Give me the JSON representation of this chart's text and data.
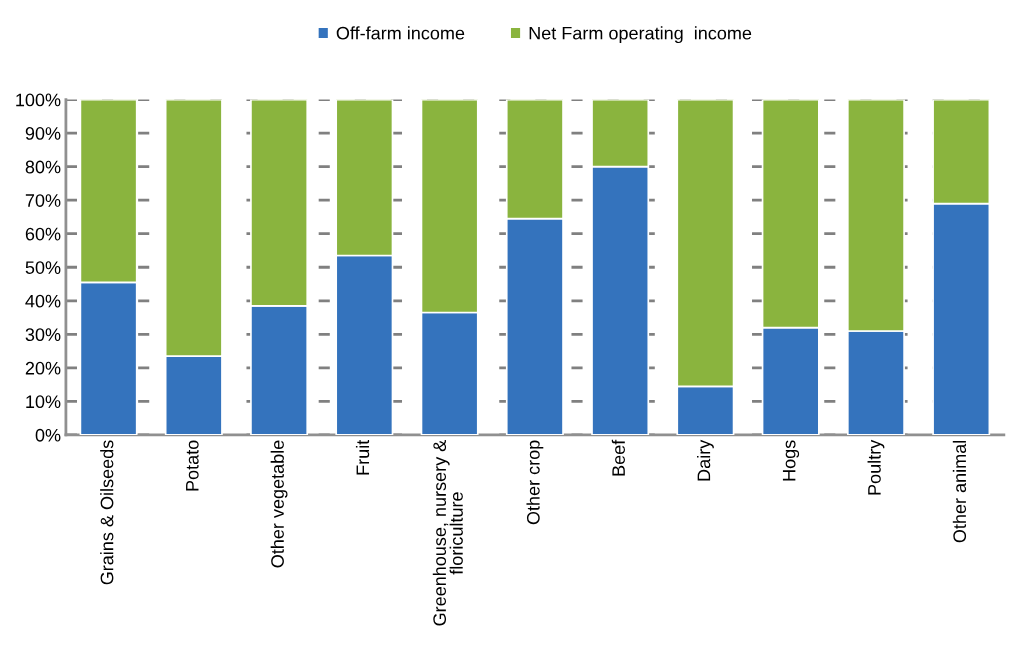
{
  "chart_data": {
    "type": "bar",
    "stacked": true,
    "categories": [
      "Grains & Oilseeds",
      "Potato",
      "Other vegetable",
      "Fruit",
      "Greenhouse, nursery &\nfloriculture",
      "Other crop",
      "Beef",
      "Dairy",
      "Hogs",
      "Poultry",
      "Other animal"
    ],
    "series": [
      {
        "name": "Off-farm income",
        "color": "#3473bd",
        "values": [
          45.5,
          23.5,
          38.5,
          53.5,
          36.5,
          64.5,
          80,
          14.5,
          32,
          31,
          69
        ]
      },
      {
        "name": "Net Farm operating  income",
        "color": "#8ab43e",
        "values": [
          54.5,
          76.5,
          61.5,
          46.5,
          63.5,
          35.5,
          20,
          85.5,
          68,
          69,
          31
        ]
      }
    ],
    "ylim": [
      0,
      100
    ],
    "yticks": [
      {
        "value": 0,
        "label": "0%"
      },
      {
        "value": 10,
        "label": "10%"
      },
      {
        "value": 20,
        "label": "20%"
      },
      {
        "value": 30,
        "label": "30%"
      },
      {
        "value": 40,
        "label": "40%"
      },
      {
        "value": 50,
        "label": "50%"
      },
      {
        "value": 60,
        "label": "60%"
      },
      {
        "value": 70,
        "label": "70%"
      },
      {
        "value": 80,
        "label": "80%"
      },
      {
        "value": 90,
        "label": "90%"
      },
      {
        "value": 100,
        "label": "100%"
      }
    ],
    "grid": "y",
    "legend": "top"
  }
}
